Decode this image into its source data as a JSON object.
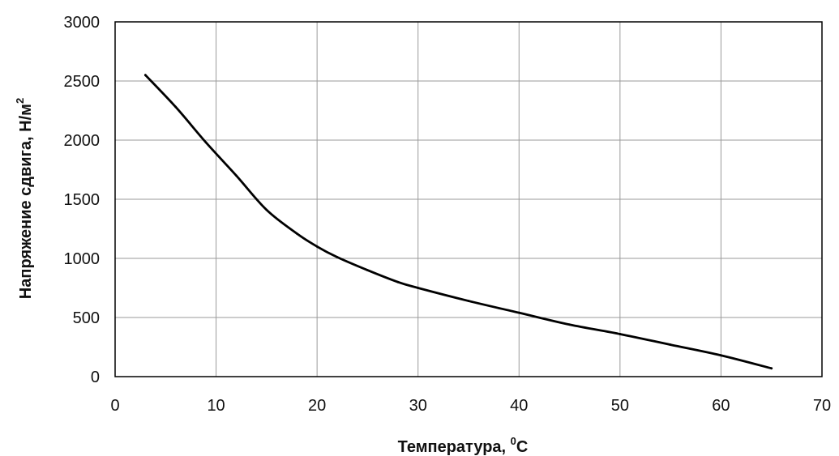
{
  "chart_data": {
    "type": "line",
    "title": "",
    "xlabel": "Температура, ",
    "xlabel_sup": "0",
    "xlabel_tail": "C",
    "ylabel": "Напряжение сдвига, Н/м",
    "ylabel_sup": "2",
    "xlim": [
      0,
      70
    ],
    "ylim": [
      0,
      3000
    ],
    "xticks": [
      0,
      10,
      20,
      30,
      40,
      50,
      60,
      70
    ],
    "yticks": [
      0,
      500,
      1000,
      1500,
      2000,
      2500,
      3000
    ],
    "grid": true,
    "series": [
      {
        "x": [
          3,
          6,
          9,
          12,
          15,
          18,
          20,
          22,
          25,
          28,
          30,
          35,
          40,
          45,
          50,
          55,
          60,
          65
        ],
        "y": [
          2550,
          2280,
          1980,
          1700,
          1410,
          1210,
          1100,
          1010,
          900,
          800,
          750,
          640,
          540,
          440,
          360,
          270,
          180,
          70
        ]
      }
    ],
    "line_color": "#000000",
    "grid_color": "#9a9a9a"
  }
}
